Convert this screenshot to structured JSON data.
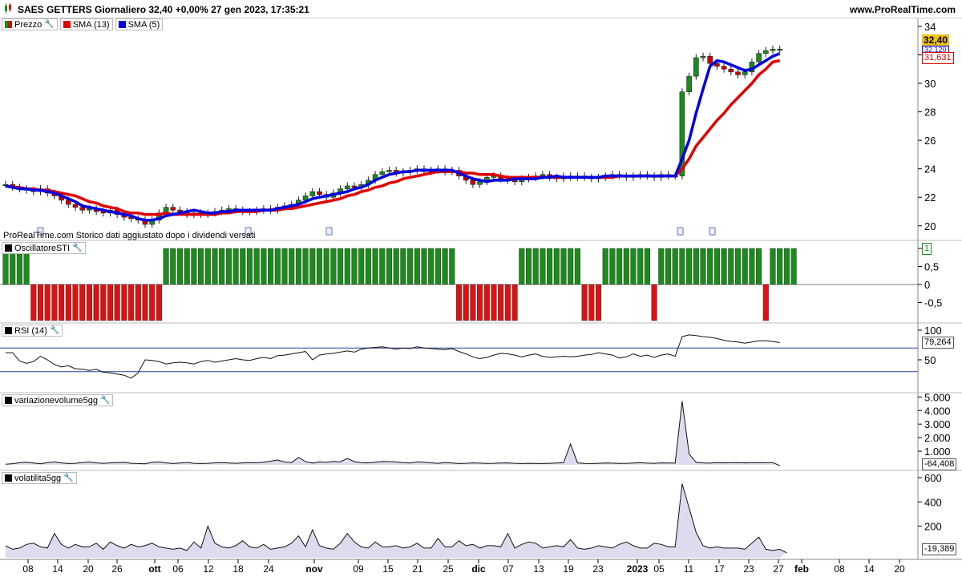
{
  "header": {
    "title": "SAES GETTERS Giornaliero 32,40 +0,00% 27 gen 2023, 17:35:21",
    "site": "www.ProRealTime.com"
  },
  "legends": {
    "price": {
      "label": "Prezzo",
      "color": "#1a8c1a"
    },
    "sma13": {
      "label": "SMA (13)",
      "color": "#e00000"
    },
    "sma5": {
      "label": "SMA (5)",
      "color": "#0000e0"
    },
    "osc": {
      "label": "OscillatoreSTI"
    },
    "rsi": {
      "label": "RSI (14)"
    },
    "vol": {
      "label": "variazionevolume5gg"
    },
    "volat": {
      "label": "volatilita5gg"
    }
  },
  "notes": {
    "dividend": "ProRealTime.com  Storico dati aggiustato dopo i dividendi versati"
  },
  "tags": {
    "price_last": "32,40",
    "sma5_last": "32,120",
    "sma13_last": "31,631",
    "osc_last": "1",
    "rsi_last": "79,264",
    "vol_last": "-64,408",
    "volat_last": "-19,389"
  },
  "chart_data": [
    {
      "type": "candlestick",
      "title": "SAES GETTERS Giornaliero",
      "y_ticks": [
        "20",
        "22",
        "24",
        "26",
        "28",
        "30",
        "32",
        "34"
      ],
      "ylim": [
        19.2,
        34.5
      ],
      "x_ticks": [
        "08",
        "14",
        "20",
        "26",
        "ott",
        "06",
        "12",
        "18",
        "24",
        "nov",
        "09",
        "15",
        "21",
        "25",
        "dic",
        "07",
        "13",
        "19",
        "23",
        "2023",
        "05",
        "11",
        "17",
        "23",
        "27",
        "feb",
        "08",
        "14",
        "20"
      ],
      "close": [
        22.9,
        22.7,
        22.6,
        22.5,
        22.4,
        22.6,
        22.3,
        22.1,
        21.8,
        21.5,
        21.3,
        21.1,
        21.2,
        21.0,
        20.9,
        21.1,
        20.8,
        20.6,
        20.5,
        20.4,
        20.1,
        20.4,
        20.9,
        21.3,
        21.1,
        21.0,
        20.8,
        20.9,
        20.8,
        20.9,
        21.0,
        21.1,
        21.2,
        21.1,
        21.0,
        21.0,
        21.1,
        21.2,
        21.1,
        21.3,
        21.4,
        21.5,
        21.8,
        22.1,
        22.4,
        22.2,
        22.0,
        22.3,
        22.6,
        22.8,
        22.7,
        22.9,
        23.2,
        23.6,
        23.8,
        23.9,
        23.7,
        23.8,
        23.9,
        24.0,
        23.8,
        23.9,
        24.0,
        23.8,
        23.9,
        23.5,
        23.2,
        22.9,
        23.1,
        23.4,
        23.5,
        23.3,
        23.2,
        23.1,
        23.3,
        23.4,
        23.5,
        23.6,
        23.4,
        23.3,
        23.5,
        23.4,
        23.5,
        23.4,
        23.3,
        23.4,
        23.5,
        23.6,
        23.5,
        23.4,
        23.5,
        23.6,
        23.5,
        23.4,
        23.6,
        23.5,
        23.5,
        29.4,
        30.5,
        31.8,
        31.9,
        31.4,
        31.2,
        31.0,
        30.8,
        30.6,
        30.8,
        31.5,
        32.1,
        32.3,
        32.4,
        32.4
      ],
      "series": [
        {
          "name": "SMA (13)",
          "values": [
            22.8,
            22.7,
            22.7,
            22.6,
            22.6,
            22.5,
            22.5,
            22.4,
            22.3,
            22.2,
            22.1,
            21.9,
            21.7,
            21.6,
            21.4,
            21.3,
            21.2,
            21.0,
            20.9,
            20.9,
            20.8,
            20.8,
            20.8,
            20.9,
            20.8,
            20.8,
            20.8,
            20.8,
            20.8,
            20.8,
            20.8,
            20.9,
            20.9,
            21.0,
            21.0,
            21.0,
            21.0,
            21.1,
            21.1,
            21.1,
            21.2,
            21.2,
            21.3,
            21.4,
            21.5,
            21.6,
            21.7,
            21.8,
            21.9,
            22.1,
            22.2,
            22.4,
            22.5,
            22.7,
            22.8,
            23.0,
            23.1,
            23.3,
            23.4,
            23.5,
            23.6,
            23.7,
            23.8,
            23.8,
            23.8,
            23.8,
            23.7,
            23.7,
            23.6,
            23.6,
            23.6,
            23.5,
            23.4,
            23.4,
            23.4,
            23.4,
            23.4,
            23.4,
            23.4,
            23.4,
            23.4,
            23.4,
            23.4,
            23.4,
            23.4,
            23.4,
            23.4,
            23.4,
            23.5,
            23.5,
            23.5,
            23.5,
            23.5,
            23.5,
            23.5,
            23.5,
            23.5,
            24.0,
            24.7,
            25.6,
            26.2,
            26.8,
            27.4,
            27.9,
            28.5,
            29.0,
            29.5,
            30.0,
            30.6,
            31.0,
            31.5,
            31.6
          ]
        },
        {
          "name": "SMA (5)",
          "values": [
            22.8,
            22.7,
            22.6,
            22.6,
            22.5,
            22.5,
            22.4,
            22.3,
            22.1,
            21.9,
            21.7,
            21.4,
            21.3,
            21.2,
            21.1,
            21.0,
            20.9,
            20.8,
            20.7,
            20.5,
            20.4,
            20.4,
            20.5,
            20.7,
            20.8,
            20.9,
            21.0,
            21.1,
            21.0,
            20.9,
            20.9,
            21.0,
            21.0,
            21.1,
            21.1,
            21.1,
            21.1,
            21.1,
            21.1,
            21.2,
            21.3,
            21.4,
            21.5,
            21.7,
            21.9,
            22.0,
            22.1,
            22.2,
            22.3,
            22.4,
            22.6,
            22.7,
            22.9,
            23.2,
            23.4,
            23.6,
            23.7,
            23.8,
            23.8,
            23.9,
            23.9,
            23.9,
            23.9,
            23.9,
            23.9,
            23.7,
            23.5,
            23.3,
            23.2,
            23.1,
            23.2,
            23.2,
            23.2,
            23.3,
            23.3,
            23.3,
            23.3,
            23.4,
            23.4,
            23.5,
            23.4,
            23.4,
            23.4,
            23.4,
            23.4,
            23.4,
            23.5,
            23.5,
            23.5,
            23.5,
            23.5,
            23.5,
            23.5,
            23.5,
            23.5,
            23.5,
            23.5,
            24.7,
            26.0,
            27.9,
            29.6,
            31.2,
            31.6,
            31.5,
            31.3,
            31.1,
            30.9,
            31.0,
            31.3,
            31.6,
            31.9,
            32.1
          ]
        }
      ]
    },
    {
      "type": "bar",
      "title": "OscillatoreSTI",
      "y_ticks": [
        "1",
        "0,5",
        "0",
        "-0,5"
      ],
      "ylim": [
        -1,
        1
      ],
      "values": [
        1,
        1,
        1,
        1,
        -1,
        -1,
        -1,
        -1,
        -1,
        -1,
        -1,
        -1,
        -1,
        -1,
        -1,
        -1,
        -1,
        -1,
        -1,
        -1,
        -1,
        -1,
        -1,
        1,
        1,
        1,
        1,
        1,
        1,
        1,
        1,
        1,
        1,
        1,
        1,
        1,
        1,
        1,
        1,
        1,
        1,
        1,
        1,
        1,
        1,
        1,
        1,
        1,
        1,
        1,
        1,
        1,
        1,
        1,
        1,
        1,
        1,
        1,
        1,
        1,
        1,
        1,
        1,
        1,
        1,
        -1,
        -1,
        -1,
        -1,
        -1,
        -1,
        -1,
        -1,
        -1,
        1,
        1,
        1,
        1,
        1,
        1,
        1,
        1,
        1,
        -1,
        -1,
        -1,
        1,
        1,
        1,
        1,
        1,
        1,
        1,
        -1,
        1,
        1,
        1,
        1,
        1,
        1,
        1,
        1,
        1,
        1,
        1,
        1,
        1,
        1,
        1,
        -1,
        1,
        1,
        1,
        1
      ]
    },
    {
      "type": "line",
      "title": "RSI (14)",
      "y_ticks": [
        "100",
        "50"
      ],
      "ylim": [
        0,
        100
      ],
      "levels": [
        70,
        30
      ],
      "values": [
        62,
        62,
        48,
        44,
        47,
        56,
        50,
        42,
        38,
        40,
        35,
        34,
        32,
        34,
        29,
        28,
        26,
        24,
        19,
        28,
        50,
        49,
        47,
        43,
        45,
        46,
        45,
        43,
        47,
        49,
        46,
        48,
        50,
        52,
        50,
        49,
        52,
        54,
        52,
        57,
        58,
        60,
        62,
        64,
        50,
        58,
        60,
        61,
        63,
        65,
        63,
        68,
        70,
        71,
        72,
        70,
        68,
        70,
        69,
        72,
        70,
        69,
        68,
        67,
        69,
        64,
        60,
        55,
        52,
        54,
        58,
        61,
        60,
        58,
        55,
        58,
        60,
        56,
        54,
        55,
        56,
        55,
        56,
        58,
        59,
        62,
        60,
        58,
        53,
        55,
        60,
        56,
        58,
        54,
        58,
        60,
        56,
        89,
        92,
        91,
        89,
        88,
        86,
        83,
        81,
        80,
        78,
        80,
        82,
        82,
        81,
        79
      ]
    },
    {
      "type": "area",
      "title": "variazionevolume5gg",
      "y_ticks": [
        "5.000",
        "4.000",
        "3.000",
        "2.000",
        "1.000"
      ],
      "ylim": [
        -300,
        5200
      ],
      "values": [
        40,
        80,
        150,
        190,
        130,
        70,
        160,
        210,
        140,
        90,
        110,
        170,
        200,
        140,
        110,
        140,
        160,
        180,
        110,
        90,
        70,
        180,
        210,
        140,
        90,
        130,
        170,
        110,
        90,
        110,
        140,
        160,
        130,
        110,
        140,
        160,
        150,
        190,
        260,
        350,
        200,
        160,
        540,
        230,
        120,
        210,
        190,
        240,
        220,
        460,
        230,
        160,
        140,
        190,
        240,
        230,
        210,
        160,
        130,
        210,
        190,
        140,
        110,
        160,
        130,
        90,
        110,
        140,
        120,
        100,
        110,
        130,
        140,
        110,
        90,
        110,
        100,
        90,
        110,
        130,
        150,
        1540,
        140,
        100,
        90,
        110,
        130,
        120,
        100,
        110,
        130,
        150,
        120,
        110,
        140,
        130,
        120,
        4700,
        800,
        180,
        140,
        120,
        160,
        140,
        150,
        160,
        140,
        150,
        160,
        150,
        160,
        -64
      ]
    },
    {
      "type": "area",
      "title": "volatilita5gg",
      "y_ticks": [
        "600",
        "400",
        "200"
      ],
      "ylim": [
        -60,
        640
      ],
      "values": [
        40,
        10,
        20,
        50,
        60,
        30,
        20,
        140,
        50,
        20,
        50,
        30,
        30,
        60,
        10,
        70,
        40,
        20,
        50,
        30,
        40,
        60,
        30,
        20,
        10,
        20,
        0,
        70,
        20,
        200,
        60,
        30,
        20,
        40,
        80,
        30,
        20,
        50,
        10,
        20,
        30,
        60,
        120,
        30,
        170,
        40,
        20,
        10,
        60,
        140,
        70,
        30,
        20,
        70,
        30,
        30,
        40,
        20,
        30,
        60,
        20,
        20,
        100,
        30,
        30,
        80,
        40,
        50,
        20,
        40,
        40,
        30,
        140,
        20,
        50,
        70,
        60,
        20,
        30,
        40,
        30,
        90,
        20,
        10,
        20,
        40,
        30,
        20,
        50,
        70,
        40,
        20,
        20,
        60,
        50,
        30,
        30,
        550,
        350,
        150,
        40,
        20,
        30,
        20,
        20,
        20,
        10,
        60,
        110,
        10,
        0,
        10,
        -19
      ]
    }
  ]
}
